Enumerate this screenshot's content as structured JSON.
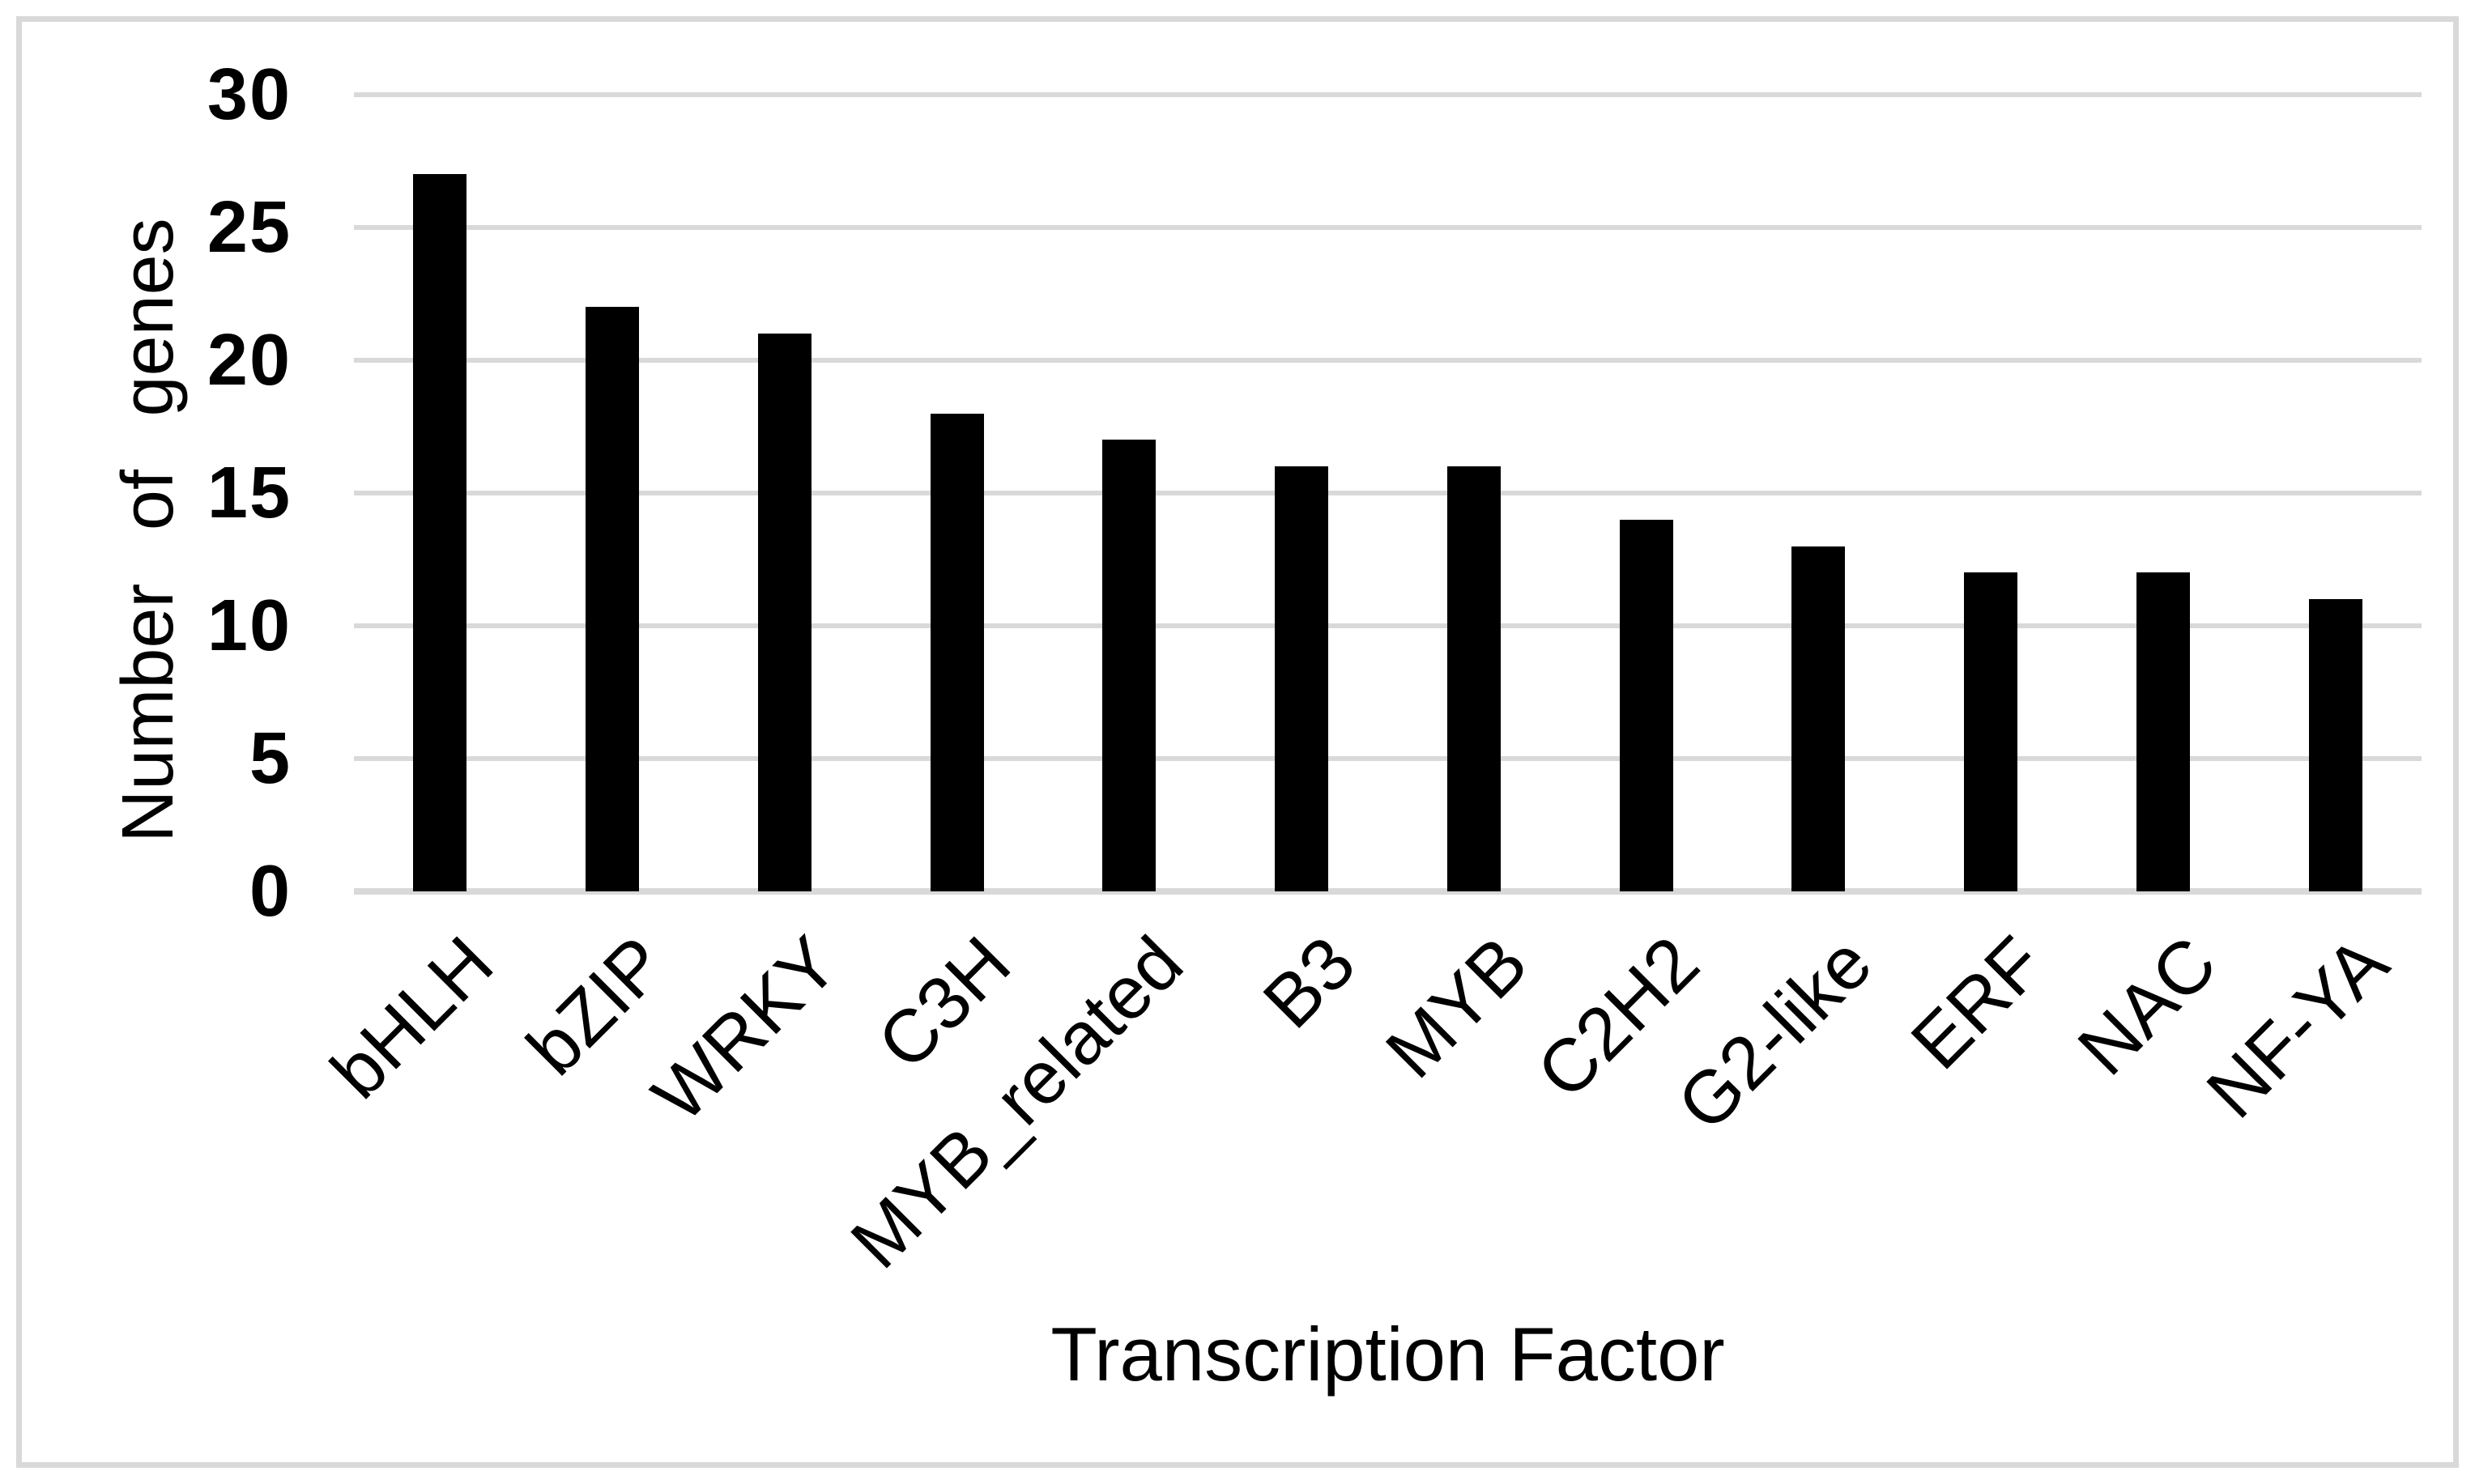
{
  "chart_data": {
    "type": "bar",
    "categories": [
      "bHLH",
      "bZIP",
      "WRKY",
      "C3H",
      "MYB_related",
      "B3",
      "MYB",
      "C2H2",
      "G2-like",
      "ERF",
      "NAC",
      "NF-YA"
    ],
    "values": [
      27,
      22,
      21,
      18,
      17,
      16,
      16,
      14,
      13,
      12,
      12,
      11
    ],
    "xlabel": "Transcription Factor",
    "ylabel": "Number of genes",
    "ylim": [
      0,
      30
    ],
    "yticks": [
      0,
      5,
      10,
      15,
      20,
      25,
      30
    ],
    "grid": "horizontal",
    "legend": "none",
    "bar_color": "#000000",
    "gridline_color": "#d9d9d9",
    "border_color": "#d9d9d9",
    "background_color": "#ffffff"
  }
}
